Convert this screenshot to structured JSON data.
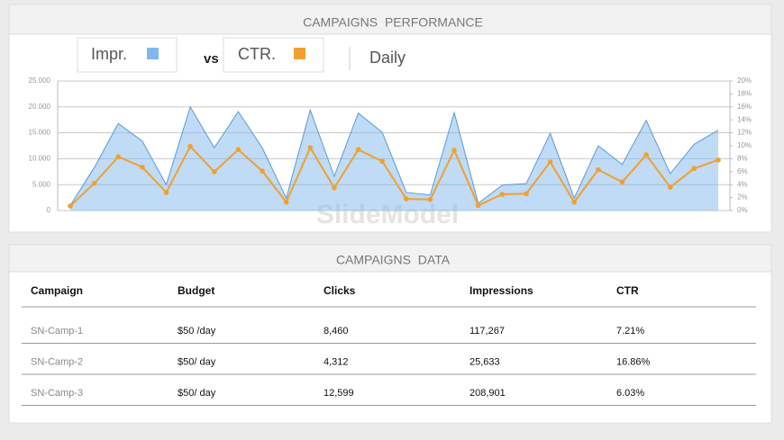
{
  "panel_title": "CAMPAIGNS PERFORMANCE",
  "legend": {
    "vs": "vs",
    "period": "Daily"
  },
  "watermark": "SlideModel",
  "chart_data": {
    "type": "line",
    "categories": [
      null,
      null,
      null,
      null,
      null,
      null,
      null,
      null,
      null,
      null,
      null,
      null,
      null,
      null,
      null,
      null,
      null,
      null,
      null,
      null,
      null,
      null,
      null,
      null,
      null,
      null,
      null,
      null
    ],
    "series": [
      {
        "name": "Impr.",
        "type": "area",
        "color": "#7fb8ee",
        "values": [
          1000,
          8300,
          16800,
          13400,
          5000,
          20000,
          12100,
          19100,
          12100,
          2400,
          19400,
          6600,
          18800,
          15100,
          3500,
          3000,
          18900,
          1400,
          4900,
          5200,
          14900,
          2400,
          12500,
          8900,
          17400,
          7100,
          12800,
          15500
        ]
      },
      {
        "name": "CTR.",
        "type": "line",
        "axis": "y2",
        "color": "#f0a030",
        "values": [
          0.7,
          4.2,
          8.3,
          6.7,
          2.8,
          9.9,
          6.0,
          9.4,
          6.1,
          1.3,
          9.7,
          3.5,
          9.4,
          7.6,
          1.8,
          1.7,
          9.3,
          0.8,
          2.5,
          2.6,
          7.5,
          1.3,
          6.3,
          4.4,
          8.6,
          3.6,
          6.5,
          7.8
        ]
      }
    ],
    "ylim": [
      0,
      25000
    ],
    "yticks": [
      0,
      {
        "value": 5000,
        "label": "5.000"
      },
      {
        "value": 10000,
        "label": "10.000"
      },
      {
        "value": 15000,
        "label": "15.000"
      },
      {
        "value": 20000,
        "label": "20.000"
      },
      {
        "value": 25000,
        "label": "25.000"
      }
    ],
    "y2lim": [
      0,
      20
    ],
    "y2ticks": [
      {
        "value": 0,
        "label": "0%"
      },
      {
        "value": 2,
        "label": "2%"
      },
      {
        "value": 4,
        "label": "4%"
      },
      {
        "value": 6,
        "label": "6%"
      },
      {
        "value": 8,
        "label": "8%"
      },
      {
        "value": 10,
        "label": "10%"
      },
      {
        "value": 12,
        "label": "12%"
      },
      {
        "value": 14,
        "label": "14%"
      },
      {
        "value": 16,
        "label": "16%"
      },
      {
        "value": 18,
        "label": "18%"
      },
      {
        "value": 20,
        "label": "20%"
      }
    ],
    "grid": true
  },
  "table": {
    "title": "CAMPAIGNS DATA",
    "columns": [
      "Campaign",
      "Budget",
      "Clicks",
      "Impressions",
      "CTR"
    ],
    "rows": [
      [
        "SN-Camp-1",
        "$50 /day",
        "8,460",
        "117,267",
        "7.21%"
      ],
      [
        "SN-Camp-2",
        "$50/ day",
        "4,312",
        "25,633",
        "16.86%"
      ],
      [
        "SN-Camp-3",
        "$50/ day",
        "12,599",
        "208,901",
        "6.03%"
      ]
    ]
  }
}
